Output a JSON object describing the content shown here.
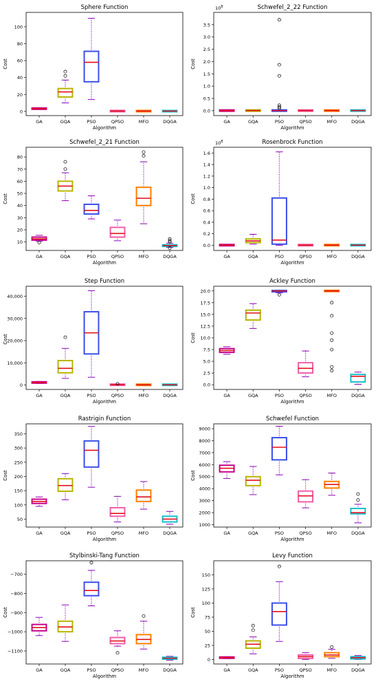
{
  "chart_data": [
    {
      "type": "box",
      "title": "Sphere Function",
      "xlabel": "Algorithm",
      "ylabel": "Cost",
      "exponent_label": "",
      "ylim": [
        -5,
        117
      ],
      "yticks": [
        0,
        20,
        40,
        60,
        80,
        100
      ],
      "ytick_labels": [
        "0",
        "20",
        "40",
        "60",
        "80",
        "100"
      ],
      "categories": [
        "GA",
        "GQA",
        "PSO",
        "QPSO",
        "MFO",
        "DQGA"
      ],
      "colors": [
        "#c8008c",
        "#b8b400",
        "#3a4ee8",
        "#f05ca8",
        "#ff7f00",
        "#17bfcf"
      ],
      "boxes": [
        {
          "whislo": 2.5,
          "q1": 2.8,
          "med": 3.2,
          "q3": 3.6,
          "whishi": 4.0,
          "fliers": []
        },
        {
          "whislo": 10,
          "q1": 17,
          "med": 23,
          "q3": 27,
          "whishi": 37,
          "fliers": [
            42,
            47
          ]
        },
        {
          "whislo": 14,
          "q1": 35,
          "med": 58,
          "q3": 71,
          "whishi": 110,
          "fliers": []
        },
        {
          "whislo": 0.1,
          "q1": 0.2,
          "med": 0.3,
          "q3": 0.5,
          "whishi": 0.8,
          "fliers": []
        },
        {
          "whislo": 0.1,
          "q1": 0.2,
          "med": 0.3,
          "q3": 0.4,
          "whishi": 0.7,
          "fliers": []
        },
        {
          "whislo": 0.1,
          "q1": 0.2,
          "med": 0.3,
          "q3": 0.4,
          "whishi": 0.6,
          "fliers": []
        }
      ]
    },
    {
      "type": "box",
      "title": "Schwefel_2_22 Function",
      "xlabel": "Algorithm",
      "ylabel": "Cost",
      "exponent_label": "1e8",
      "ylim": [
        -0.2,
        4.0
      ],
      "yticks": [
        0,
        0.5,
        1.0,
        1.5,
        2.0,
        2.5,
        3.0,
        3.5
      ],
      "ytick_labels": [
        "0.0",
        "0.5",
        "1.0",
        "1.5",
        "2.0",
        "2.5",
        "3.0",
        "3.5"
      ],
      "categories": [
        "GA",
        "GQA",
        "PSO",
        "QPSO",
        "MFO",
        "DQGA"
      ],
      "colors": [
        "#c8008c",
        "#b8b400",
        "#3a4ee8",
        "#f05ca8",
        "#ff7f00",
        "#17bfcf"
      ],
      "boxes": [
        {
          "whislo": 0,
          "q1": 0,
          "med": 0.005,
          "q3": 0.01,
          "whishi": 0.02,
          "fliers": []
        },
        {
          "whislo": 0,
          "q1": 0,
          "med": 0.005,
          "q3": 0.01,
          "whishi": 0.02,
          "fliers": []
        },
        {
          "whislo": 0,
          "q1": 0,
          "med": 0.005,
          "q3": 0.01,
          "whishi": 0.02,
          "fliers": [
            0.1,
            0.15,
            0.22,
            1.42,
            1.87,
            3.7
          ]
        },
        {
          "whislo": 0,
          "q1": 0,
          "med": 0.005,
          "q3": 0.01,
          "whishi": 0.02,
          "fliers": []
        },
        {
          "whislo": 0,
          "q1": 0,
          "med": 0.005,
          "q3": 0.01,
          "whishi": 0.02,
          "fliers": []
        },
        {
          "whislo": 0,
          "q1": 0,
          "med": 0.005,
          "q3": 0.01,
          "whishi": 0.02,
          "fliers": []
        }
      ]
    },
    {
      "type": "box",
      "title": "Schwefel_2_21 Function",
      "xlabel": "Algorithm",
      "ylabel": "Cost",
      "exponent_label": "",
      "ylim": [
        3,
        88
      ],
      "yticks": [
        10,
        20,
        30,
        40,
        50,
        60,
        70,
        80
      ],
      "ytick_labels": [
        "10",
        "20",
        "30",
        "40",
        "50",
        "60",
        "70",
        "80"
      ],
      "categories": [
        "GA",
        "GQA",
        "PSO",
        "QPSO",
        "MFO",
        "DQGA"
      ],
      "colors": [
        "#c8008c",
        "#b8b400",
        "#3a4ee8",
        "#f05ca8",
        "#ff7f00",
        "#17bfcf"
      ],
      "boxes": [
        {
          "whislo": 10.5,
          "q1": 11.5,
          "med": 12.5,
          "q3": 14,
          "whishi": 15.5,
          "fliers": [
            9.5
          ]
        },
        {
          "whislo": 44,
          "q1": 52,
          "med": 56,
          "q3": 60,
          "whishi": 67,
          "fliers": [
            70,
            76
          ]
        },
        {
          "whislo": 29,
          "q1": 33,
          "med": 36,
          "q3": 41,
          "whishi": 48,
          "fliers": []
        },
        {
          "whislo": 11,
          "q1": 14,
          "med": 17,
          "q3": 22,
          "whishi": 28,
          "fliers": []
        },
        {
          "whislo": 25,
          "q1": 40,
          "med": 46,
          "q3": 55,
          "whishi": 76,
          "fliers": [
            81,
            84
          ]
        },
        {
          "whislo": 5.5,
          "q1": 6.3,
          "med": 7,
          "q3": 7.7,
          "whishi": 9,
          "fliers": [
            5,
            10,
            11,
            12.5
          ]
        }
      ]
    },
    {
      "type": "box",
      "title": "Rosenbrock Function",
      "xlabel": "Algorithm",
      "ylabel": "Cost",
      "exponent_label": "1e8",
      "ylim": [
        -0.09,
        1.7
      ],
      "yticks": [
        0,
        0.2,
        0.4,
        0.6,
        0.8,
        1.0,
        1.2,
        1.4,
        1.6
      ],
      "ytick_labels": [
        "0.0",
        "0.2",
        "0.4",
        "0.6",
        "0.8",
        "1.0",
        "1.2",
        "1.4",
        "1.6"
      ],
      "categories": [
        "GA",
        "GQA",
        "PSO",
        "QPSO",
        "MFO",
        "DQGA"
      ],
      "colors": [
        "#c8008c",
        "#b8b400",
        "#3a4ee8",
        "#f05ca8",
        "#ff7f00",
        "#17bfcf"
      ],
      "boxes": [
        {
          "whislo": 0,
          "q1": 0,
          "med": 0.002,
          "q3": 0.005,
          "whishi": 0.01,
          "fliers": []
        },
        {
          "whislo": 0.02,
          "q1": 0.045,
          "med": 0.075,
          "q3": 0.11,
          "whishi": 0.19,
          "fliers": []
        },
        {
          "whislo": 0,
          "q1": 0.02,
          "med": 0.09,
          "q3": 0.82,
          "whishi": 1.62,
          "fliers": []
        },
        {
          "whislo": 0,
          "q1": 0,
          "med": 0.002,
          "q3": 0.005,
          "whishi": 0.01,
          "fliers": []
        },
        {
          "whislo": 0,
          "q1": 0,
          "med": 0.002,
          "q3": 0.005,
          "whishi": 0.01,
          "fliers": []
        },
        {
          "whislo": 0,
          "q1": 0,
          "med": 0.002,
          "q3": 0.005,
          "whishi": 0.01,
          "fliers": []
        }
      ]
    },
    {
      "type": "box",
      "title": "Step Function",
      "xlabel": "Algorithm",
      "ylabel": "Cost",
      "exponent_label": "",
      "ylim": [
        -2000,
        44500
      ],
      "yticks": [
        0,
        10000,
        20000,
        30000,
        40000
      ],
      "ytick_labels": [
        "0",
        "10,000",
        "20,000",
        "30,000",
        "40,000"
      ],
      "categories": [
        "GA",
        "GQA",
        "PSO",
        "QPSO",
        "MFO",
        "DQGA"
      ],
      "colors": [
        "#c8008c",
        "#b8b400",
        "#3a4ee8",
        "#f05ca8",
        "#ff7f00",
        "#17bfcf"
      ],
      "boxes": [
        {
          "whislo": 700,
          "q1": 950,
          "med": 1150,
          "q3": 1350,
          "whishi": 1600,
          "fliers": []
        },
        {
          "whislo": 3000,
          "q1": 5500,
          "med": 7500,
          "q3": 11000,
          "whishi": 16500,
          "fliers": [
            21500
          ]
        },
        {
          "whislo": 3500,
          "q1": 14000,
          "med": 23500,
          "q3": 33000,
          "whishi": 42500,
          "fliers": []
        },
        {
          "whislo": 0,
          "q1": 50,
          "med": 100,
          "q3": 200,
          "whishi": 350,
          "fliers": [
            550
          ]
        },
        {
          "whislo": 0,
          "q1": 40,
          "med": 80,
          "q3": 150,
          "whishi": 250,
          "fliers": []
        },
        {
          "whislo": 0,
          "q1": 40,
          "med": 80,
          "q3": 150,
          "whishi": 250,
          "fliers": []
        }
      ]
    },
    {
      "type": "box",
      "title": "Ackley Function",
      "xlabel": "Algorithm",
      "ylabel": "Cost",
      "exponent_label": "",
      "ylim": [
        -1,
        21
      ],
      "yticks": [
        0,
        2.5,
        5.0,
        7.5,
        10.0,
        12.5,
        15.0,
        17.5,
        20.0
      ],
      "ytick_labels": [
        "0.0",
        "2.5",
        "5.0",
        "7.5",
        "10.0",
        "12.5",
        "15.0",
        "17.5",
        "20.0"
      ],
      "categories": [
        "GA",
        "GQA",
        "PSO",
        "QPSO",
        "MFO",
        "DQGA"
      ],
      "colors": [
        "#c8008c",
        "#b8b400",
        "#3a4ee8",
        "#f05ca8",
        "#ff7f00",
        "#17bfcf"
      ],
      "boxes": [
        {
          "whislo": 6.5,
          "q1": 6.9,
          "med": 7.3,
          "q3": 7.7,
          "whishi": 8.1,
          "fliers": []
        },
        {
          "whislo": 12,
          "q1": 13.8,
          "med": 15.3,
          "q3": 15.9,
          "whishi": 17.3,
          "fliers": []
        },
        {
          "whislo": 19.6,
          "q1": 19.9,
          "med": 20,
          "q3": 20,
          "whishi": 20,
          "fliers": [
            19.2
          ]
        },
        {
          "whislo": 1.7,
          "q1": 2.5,
          "med": 3.5,
          "q3": 4.7,
          "whishi": 7.2,
          "fliers": []
        },
        {
          "whislo": 20,
          "q1": 20,
          "med": 20,
          "q3": 20,
          "whishi": 20,
          "fliers": [
            17.5,
            14.7,
            11,
            9.5,
            7.5,
            3.8,
            3
          ]
        },
        {
          "whislo": 0.1,
          "q1": 0.6,
          "med": 1.8,
          "q3": 2.2,
          "whishi": 2.7,
          "fliers": []
        }
      ]
    },
    {
      "type": "box",
      "title": "Rastrigin Function",
      "xlabel": "Algorithm",
      "ylabel": "Cost",
      "exponent_label": "",
      "ylim": [
        22,
        385
      ],
      "yticks": [
        50,
        100,
        150,
        200,
        250,
        300,
        350
      ],
      "ytick_labels": [
        "50",
        "100",
        "150",
        "200",
        "250",
        "300",
        "350"
      ],
      "categories": [
        "GA",
        "GQA",
        "PSO",
        "QPSO",
        "MFO",
        "DQGA"
      ],
      "colors": [
        "#c8008c",
        "#b8b400",
        "#3a4ee8",
        "#f05ca8",
        "#ff7f00",
        "#17bfcf"
      ],
      "boxes": [
        {
          "whislo": 95,
          "q1": 105,
          "med": 112,
          "q3": 120,
          "whishi": 128,
          "fliers": []
        },
        {
          "whislo": 118,
          "q1": 148,
          "med": 168,
          "q3": 192,
          "whishi": 210,
          "fliers": []
        },
        {
          "whislo": 162,
          "q1": 233,
          "med": 292,
          "q3": 325,
          "whishi": 376,
          "fliers": []
        },
        {
          "whislo": 40,
          "q1": 60,
          "med": 70,
          "q3": 90,
          "whishi": 130,
          "fliers": []
        },
        {
          "whislo": 85,
          "q1": 112,
          "med": 128,
          "q3": 152,
          "whishi": 182,
          "fliers": []
        },
        {
          "whislo": 32,
          "q1": 40,
          "med": 50,
          "q3": 60,
          "whishi": 77,
          "fliers": []
        }
      ]
    },
    {
      "type": "box",
      "title": "Schwefel Function",
      "xlabel": "Algorithm",
      "ylabel": "Cost",
      "exponent_label": "",
      "ylim": [
        800,
        9400
      ],
      "yticks": [
        1000,
        2000,
        3000,
        4000,
        5000,
        6000,
        7000,
        8000,
        9000
      ],
      "ytick_labels": [
        "1000",
        "2000",
        "3000",
        "4000",
        "5000",
        "6000",
        "7000",
        "8000",
        "9000"
      ],
      "categories": [
        "GA",
        "GQA",
        "PSO",
        "QPSO",
        "MFO",
        "DQGA"
      ],
      "colors": [
        "#c8008c",
        "#b8b400",
        "#3a4ee8",
        "#f05ca8",
        "#ff7f00",
        "#17bfcf"
      ],
      "boxes": [
        {
          "whislo": 4850,
          "q1": 5400,
          "med": 5700,
          "q3": 5950,
          "whishi": 6250,
          "fliers": []
        },
        {
          "whislo": 3500,
          "q1": 4250,
          "med": 4700,
          "q3": 5000,
          "whishi": 5850,
          "fliers": []
        },
        {
          "whislo": 5150,
          "q1": 6400,
          "med": 7450,
          "q3": 8250,
          "whishi": 9200,
          "fliers": []
        },
        {
          "whislo": 2400,
          "q1": 2900,
          "med": 3400,
          "q3": 3800,
          "whishi": 4750,
          "fliers": []
        },
        {
          "whislo": 3450,
          "q1": 4050,
          "med": 4350,
          "q3": 4600,
          "whishi": 5300,
          "fliers": []
        },
        {
          "whislo": 1150,
          "q1": 1900,
          "med": 2000,
          "q3": 2350,
          "whishi": 2700,
          "fliers": [
            3050,
            3550
          ]
        }
      ]
    },
    {
      "type": "box",
      "title": "Stylbinski-Tang Function",
      "xlabel": "Algorithm",
      "ylabel": "Cost",
      "exponent_label": "",
      "ylim": [
        -1168,
        -630
      ],
      "yticks": [
        -1100,
        -1000,
        -900,
        -800,
        -700
      ],
      "ytick_labels": [
        "−1100",
        "−1000",
        "−900",
        "−800",
        "−700"
      ],
      "categories": [
        "GA",
        "GQA",
        "PSO",
        "QPSO",
        "MFO",
        "DQGA"
      ],
      "colors": [
        "#c8008c",
        "#b8b400",
        "#3a4ee8",
        "#f05ca8",
        "#ff7f00",
        "#17bfcf"
      ],
      "boxes": [
        {
          "whislo": -1020,
          "q1": -995,
          "med": -978,
          "q3": -962,
          "whishi": -925,
          "fliers": []
        },
        {
          "whislo": -1050,
          "q1": -1000,
          "med": -975,
          "q3": -945,
          "whishi": -860,
          "fliers": []
        },
        {
          "whislo": -865,
          "q1": -812,
          "med": -785,
          "q3": -742,
          "whishi": -680,
          "fliers": [
            -640
          ]
        },
        {
          "whislo": -1075,
          "q1": -1062,
          "med": -1048,
          "q3": -1030,
          "whishi": -995,
          "fliers": [
            -1110
          ]
        },
        {
          "whislo": -1090,
          "q1": -1062,
          "med": -1040,
          "q3": -1015,
          "whishi": -945,
          "fliers": [
            -918
          ]
        },
        {
          "whislo": -1148,
          "q1": -1143,
          "med": -1138,
          "q3": -1133,
          "whishi": -1128,
          "fliers": []
        }
      ]
    },
    {
      "type": "box",
      "title": "Levy Function",
      "xlabel": "Algorithm",
      "ylabel": "Cost",
      "exponent_label": "",
      "ylim": [
        -8,
        175
      ],
      "yticks": [
        0,
        25,
        50,
        75,
        100,
        125,
        150
      ],
      "ytick_labels": [
        "0",
        "25",
        "50",
        "75",
        "100",
        "125",
        "150"
      ],
      "categories": [
        "GA",
        "GQA",
        "PSO",
        "QPSO",
        "MFO",
        "DQGA"
      ],
      "colors": [
        "#c8008c",
        "#b8b400",
        "#3a4ee8",
        "#f05ca8",
        "#ff7f00",
        "#17bfcf"
      ],
      "boxes": [
        {
          "whislo": 1.5,
          "q1": 2.5,
          "med": 3.2,
          "q3": 4,
          "whishi": 5,
          "fliers": []
        },
        {
          "whislo": 10,
          "q1": 20,
          "med": 27,
          "q3": 33,
          "whishi": 40,
          "fliers": [
            52,
            60
          ]
        },
        {
          "whislo": 32,
          "q1": 61,
          "med": 85,
          "q3": 100,
          "whishi": 138,
          "fliers": [
            165
          ]
        },
        {
          "whislo": 0,
          "q1": 2,
          "med": 5,
          "q3": 8,
          "whishi": 12,
          "fliers": []
        },
        {
          "whislo": 2,
          "q1": 5,
          "med": 8,
          "q3": 12,
          "whishi": 18,
          "fliers": [
            22
          ]
        },
        {
          "whislo": 0,
          "q1": 1,
          "med": 3,
          "q3": 5,
          "whishi": 7,
          "fliers": []
        }
      ]
    }
  ]
}
